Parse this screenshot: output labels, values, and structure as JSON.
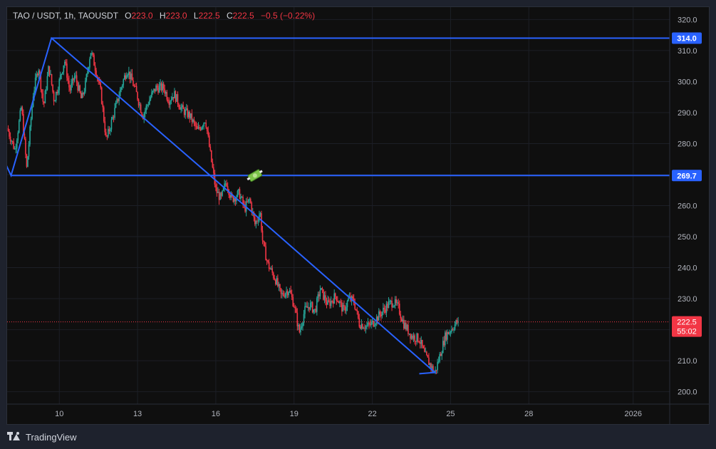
{
  "legend": {
    "symbol": "TAO / USDT, 1h, TAOUSDT",
    "o_label": "O",
    "o_value": "223.0",
    "h_label": "H",
    "h_value": "223.0",
    "l_label": "L",
    "l_value": "222.5",
    "c_label": "C",
    "c_value": "222.5",
    "change": "−0.5 (−0.22%)"
  },
  "footer": {
    "brand": "TradingView"
  },
  "colors": {
    "up": "#26a69a",
    "down": "#f23645",
    "drawing": "#2962ff",
    "price_line": "#f23645",
    "level_label_bg": "#2962ff",
    "price_label_bg": "#f23645"
  },
  "chart_data": {
    "type": "candlestick",
    "symbol": "TAOUSDT",
    "timeframe": "1h",
    "xaxis_ticks": [
      {
        "label": "10",
        "day": 10
      },
      {
        "label": "13",
        "day": 13
      },
      {
        "label": "16",
        "day": 16
      },
      {
        "label": "19",
        "day": 19
      },
      {
        "label": "22",
        "day": 22
      },
      {
        "label": "25",
        "day": 25
      },
      {
        "label": "28",
        "day": 28
      },
      {
        "label": "2026",
        "day": 32
      }
    ],
    "x_range_days": [
      8.0,
      33.4
    ],
    "yaxis_ticks": [
      200,
      210,
      220,
      230,
      240,
      250,
      260,
      270,
      280,
      290,
      300,
      310,
      320
    ],
    "ylim": [
      196,
      324
    ],
    "price_path": [
      [
        8.0,
        285
      ],
      [
        8.3,
        278
      ],
      [
        8.55,
        292
      ],
      [
        8.75,
        272
      ],
      [
        9.0,
        296
      ],
      [
        9.2,
        305
      ],
      [
        9.4,
        292
      ],
      [
        9.6,
        305
      ],
      [
        9.8,
        294
      ],
      [
        10.0,
        300
      ],
      [
        10.2,
        307
      ],
      [
        10.4,
        297
      ],
      [
        10.6,
        302
      ],
      [
        10.85,
        294
      ],
      [
        11.0,
        299
      ],
      [
        11.2,
        310
      ],
      [
        11.4,
        304
      ],
      [
        11.6,
        296
      ],
      [
        11.8,
        281
      ],
      [
        12.0,
        287
      ],
      [
        12.2,
        293
      ],
      [
        12.4,
        299
      ],
      [
        12.6,
        304
      ],
      [
        12.8,
        300
      ],
      [
        13.0,
        295
      ],
      [
        13.2,
        289
      ],
      [
        13.5,
        295
      ],
      [
        13.7,
        298
      ],
      [
        14.0,
        298
      ],
      [
        14.2,
        294
      ],
      [
        14.4,
        296
      ],
      [
        14.7,
        291
      ],
      [
        15.0,
        289
      ],
      [
        15.3,
        284
      ],
      [
        15.6,
        288
      ],
      [
        15.8,
        276
      ],
      [
        16.0,
        265
      ],
      [
        16.2,
        262
      ],
      [
        16.4,
        268
      ],
      [
        16.6,
        262
      ],
      [
        16.9,
        264
      ],
      [
        17.1,
        259
      ],
      [
        17.3,
        262
      ],
      [
        17.5,
        254
      ],
      [
        17.7,
        258
      ],
      [
        17.8,
        248
      ],
      [
        18.0,
        241
      ],
      [
        18.3,
        236
      ],
      [
        18.5,
        231
      ],
      [
        18.8,
        233
      ],
      [
        19.0,
        228
      ],
      [
        19.2,
        219
      ],
      [
        19.4,
        226
      ],
      [
        19.6,
        228
      ],
      [
        19.8,
        226
      ],
      [
        20.0,
        233
      ],
      [
        20.3,
        228
      ],
      [
        20.6,
        231
      ],
      [
        20.9,
        226
      ],
      [
        21.1,
        230
      ],
      [
        21.3,
        229
      ],
      [
        21.5,
        222
      ],
      [
        21.8,
        221
      ],
      [
        22.0,
        222
      ],
      [
        22.3,
        225
      ],
      [
        22.6,
        228
      ],
      [
        22.8,
        229
      ],
      [
        23.0,
        227
      ],
      [
        23.2,
        222
      ],
      [
        23.5,
        218
      ],
      [
        23.8,
        217
      ],
      [
        24.0,
        212
      ],
      [
        24.2,
        209
      ],
      [
        24.4,
        206
      ],
      [
        24.6,
        212
      ],
      [
        24.8,
        218
      ],
      [
        25.0,
        220
      ],
      [
        25.3,
        223
      ]
    ],
    "drawings": {
      "horizontal_levels": [
        314.0,
        269.7
      ],
      "level_labels": [
        "314.0",
        "269.7"
      ],
      "polyline": [
        [
          7.75,
          277
        ],
        [
          8.15,
          269.7
        ],
        [
          9.7,
          314.0
        ],
        [
          16.1,
          267.4
        ],
        [
          24.4,
          206.2
        ],
        [
          23.8,
          205.8
        ]
      ]
    },
    "current_price": 222.5,
    "current_price_label": "222.5",
    "countdown": "55:02"
  }
}
